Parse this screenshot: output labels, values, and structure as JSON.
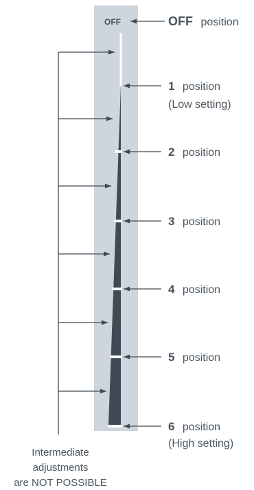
{
  "dial": {
    "off_label": "OFF"
  },
  "positions": [
    {
      "number": "OFF",
      "word": "position",
      "note": ""
    },
    {
      "number": "1",
      "word": "position",
      "note": "(Low setting)"
    },
    {
      "number": "2",
      "word": "position",
      "note": ""
    },
    {
      "number": "3",
      "word": "position",
      "note": ""
    },
    {
      "number": "4",
      "word": "position",
      "note": ""
    },
    {
      "number": "5",
      "word": "position",
      "note": ""
    },
    {
      "number": "6",
      "word": "position",
      "note": "(High setting)"
    }
  ],
  "footnote": {
    "line1": "Intermediate",
    "line2": "adjustments",
    "line3": "are NOT POSSIBLE"
  },
  "colors": {
    "panel": "#cfd5dc",
    "wedge": "#3e4a55",
    "divider": "#ffffff",
    "line": "#3e4a55",
    "text": "#4a5560"
  }
}
